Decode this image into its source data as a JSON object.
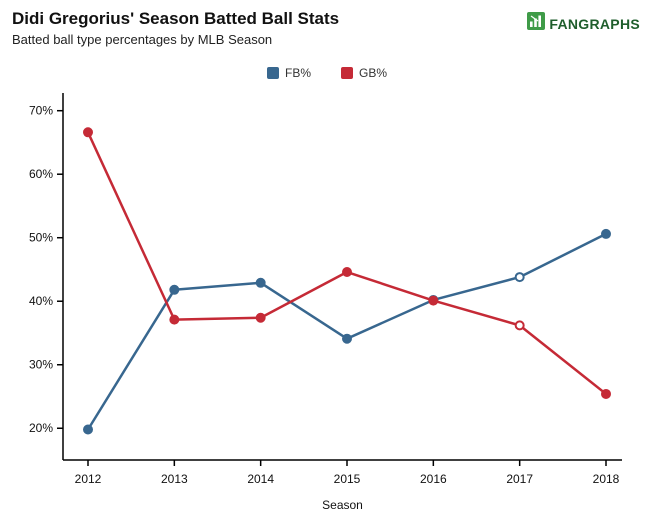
{
  "header": {
    "title": "Didi Gregorius' Season Batted Ball Stats",
    "subtitle": "Batted ball type percentages by MLB Season",
    "logo_text": "FANGRAPHS",
    "logo_green": "#3f9b48",
    "logo_text_color": "#1f5e2c"
  },
  "legend": [
    {
      "label": "FB%",
      "color": "#38678f"
    },
    {
      "label": "GB%",
      "color": "#c52a36"
    }
  ],
  "chart_data": {
    "type": "line",
    "title": "Didi Gregorius' Season Batted Ball Stats",
    "subtitle": "Batted ball type percentages by MLB Season",
    "x": [
      2012,
      2013,
      2014,
      2015,
      2016,
      2017,
      2018
    ],
    "series": [
      {
        "name": "FB%",
        "color": "#38678f",
        "values": [
          19.8,
          41.8,
          42.9,
          34.1,
          40.2,
          43.8,
          50.6
        ],
        "open_points": [
          5
        ]
      },
      {
        "name": "GB%",
        "color": "#c52a36",
        "values": [
          66.6,
          37.1,
          37.4,
          44.6,
          40.1,
          36.2,
          25.4
        ],
        "open_points": [
          5
        ]
      }
    ],
    "xlabel": "Season",
    "ylabel": "",
    "y_ticks": [
      20,
      30,
      40,
      50,
      60,
      70
    ],
    "y_tick_suffix": "%",
    "ylim": [
      15,
      72
    ],
    "grid": false,
    "legend_position": "top-center"
  }
}
